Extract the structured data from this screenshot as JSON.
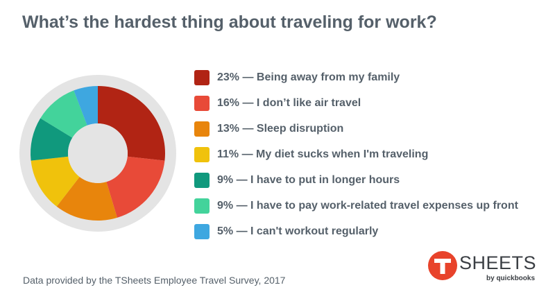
{
  "chart_data": {
    "type": "pie",
    "title": "What’s the hardest thing about traveling for work?",
    "categories": [
      "Being away from my family",
      "I don’t like air travel",
      "Sleep disruption",
      "My diet sucks when I'm traveling",
      "I have to put in longer hours",
      "I have to pay work-related travel expenses up front",
      "I can't workout regularly"
    ],
    "values": [
      23,
      16,
      13,
      11,
      9,
      9,
      5
    ],
    "unit": "%",
    "colors": [
      "#b12414",
      "#e84a38",
      "#e8850c",
      "#f0c20c",
      "#10997d",
      "#43d39b",
      "#3ea7e0"
    ],
    "legend": [
      "23% — Being away from my family",
      "16% — I don’t like air travel",
      "13% — Sleep disruption",
      "11% — My diet sucks when I'm traveling",
      "9% — I have to put in longer hours",
      "9% — I have to pay work-related travel expenses up front",
      "5% — I can't workout regularly"
    ],
    "legend_position": "right",
    "style": "donut"
  },
  "footnote": "Data provided by the TSheets Employee Travel Survey, 2017",
  "logo": {
    "wordmark": "SHEETS",
    "byline": "by quickbooks",
    "brand_color": "#e8432b"
  },
  "colors": {
    "ring_background": "#e4e4e4",
    "donut_hole": "#e4e4e4",
    "text": "#55606a"
  }
}
